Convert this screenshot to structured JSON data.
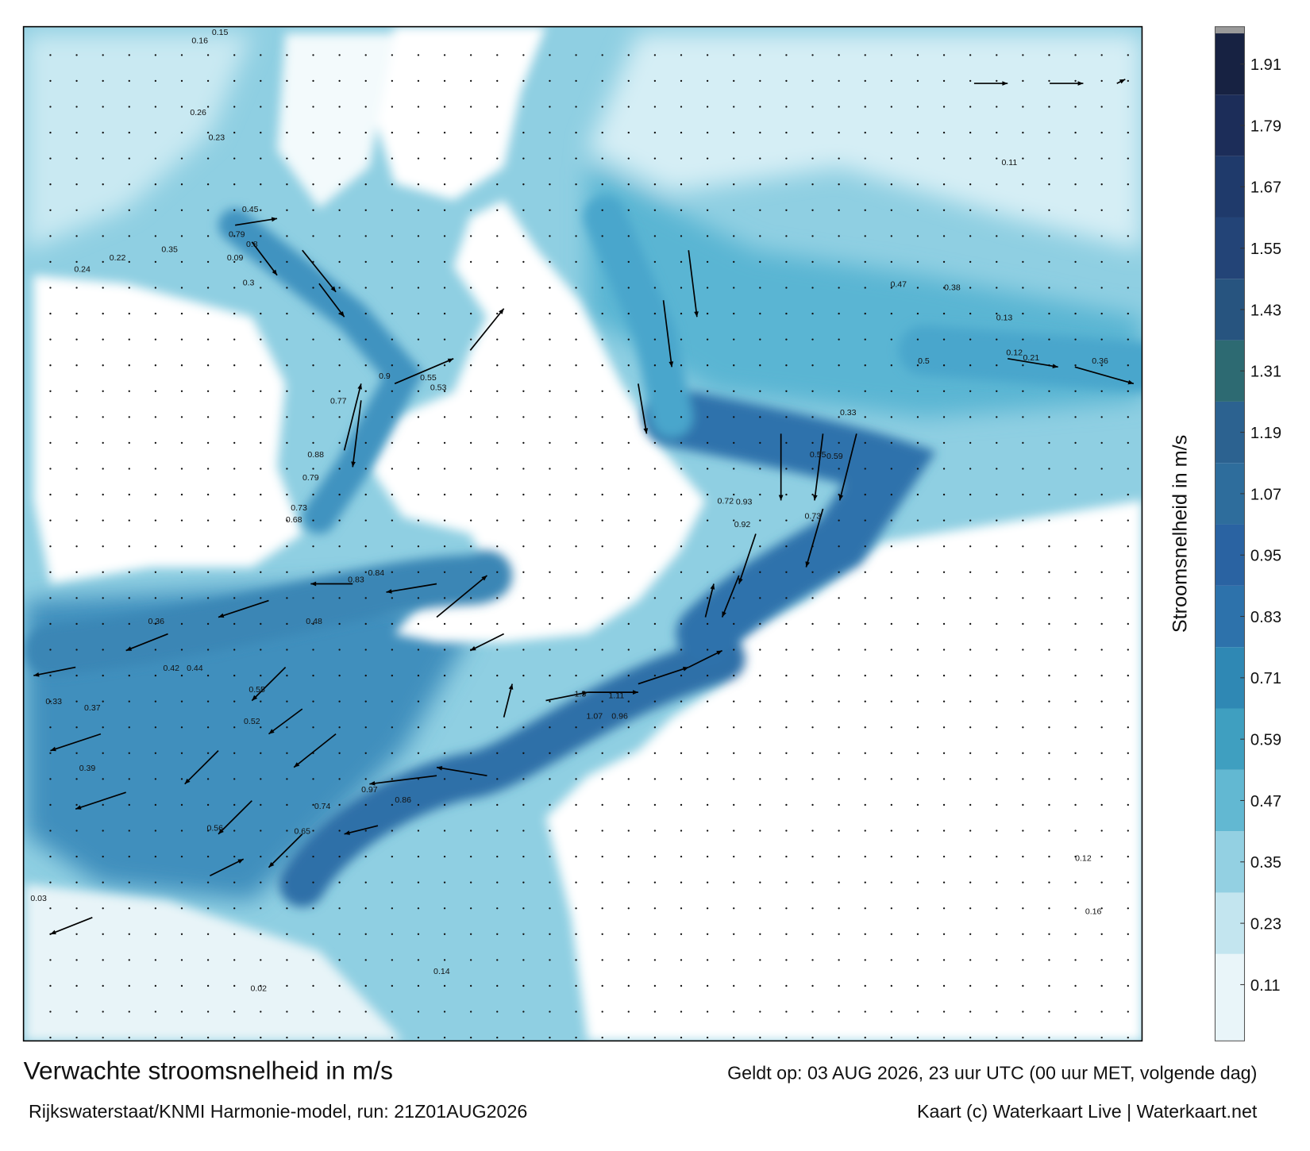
{
  "title": "Verwachte stroomsnelheid in m/s",
  "valid_time": "Geldt op: 03 AUG 2026, 23 uur UTC (00 uur MET, volgende dag)",
  "model": "Rijkswaterstaat/KNMI Harmonie-model, run: 21Z01AUG2026",
  "credit": "Kaart (c) Waterkaart Live | Waterkaart.net",
  "colorbar": {
    "label": "Stroomsnelheid in m/s",
    "lim": [
      0,
      1.97
    ],
    "ticks": [
      0.11,
      0.23,
      0.35,
      0.47,
      0.59,
      0.71,
      0.83,
      0.95,
      1.07,
      1.19,
      1.31,
      1.43,
      1.55,
      1.67,
      1.79,
      1.91
    ],
    "colors": [
      "#e9f5f9",
      "#c3e5ef",
      "#93d0e2",
      "#62b8d2",
      "#3f9fc0",
      "#2f88b4",
      "#2d72ab",
      "#2a63a2",
      "#2e6d9c",
      "#2c6290",
      "#2d6a72",
      "#27547f",
      "#234477",
      "#1f3a6b",
      "#1c2d59",
      "#172242"
    ],
    "overflow_color": "#9a9a9a"
  },
  "current_labels": [
    0.15,
    0.16,
    0.26,
    0.23,
    0.79,
    0.8,
    0.45,
    0.09,
    0.22,
    0.24,
    0.35,
    0.3,
    0.9,
    0.55,
    0.53,
    0.77,
    0.88,
    0.79,
    0.73,
    0.68,
    0.83,
    0.84,
    0.48,
    0.55,
    0.39,
    0.33,
    0.37,
    0.42,
    0.44,
    0.36,
    0.52,
    0.56,
    0.74,
    0.65,
    0.86,
    0.97,
    1.3,
    1.11,
    1.07,
    0.96,
    0.72,
    0.92,
    0.93,
    0.73,
    0.55,
    0.59,
    0.36,
    0.13,
    0.12,
    0.21,
    0.33,
    0.47,
    0.5,
    0.38,
    0.12,
    0.16,
    0.11,
    0.03,
    0.02,
    0.14
  ]
}
